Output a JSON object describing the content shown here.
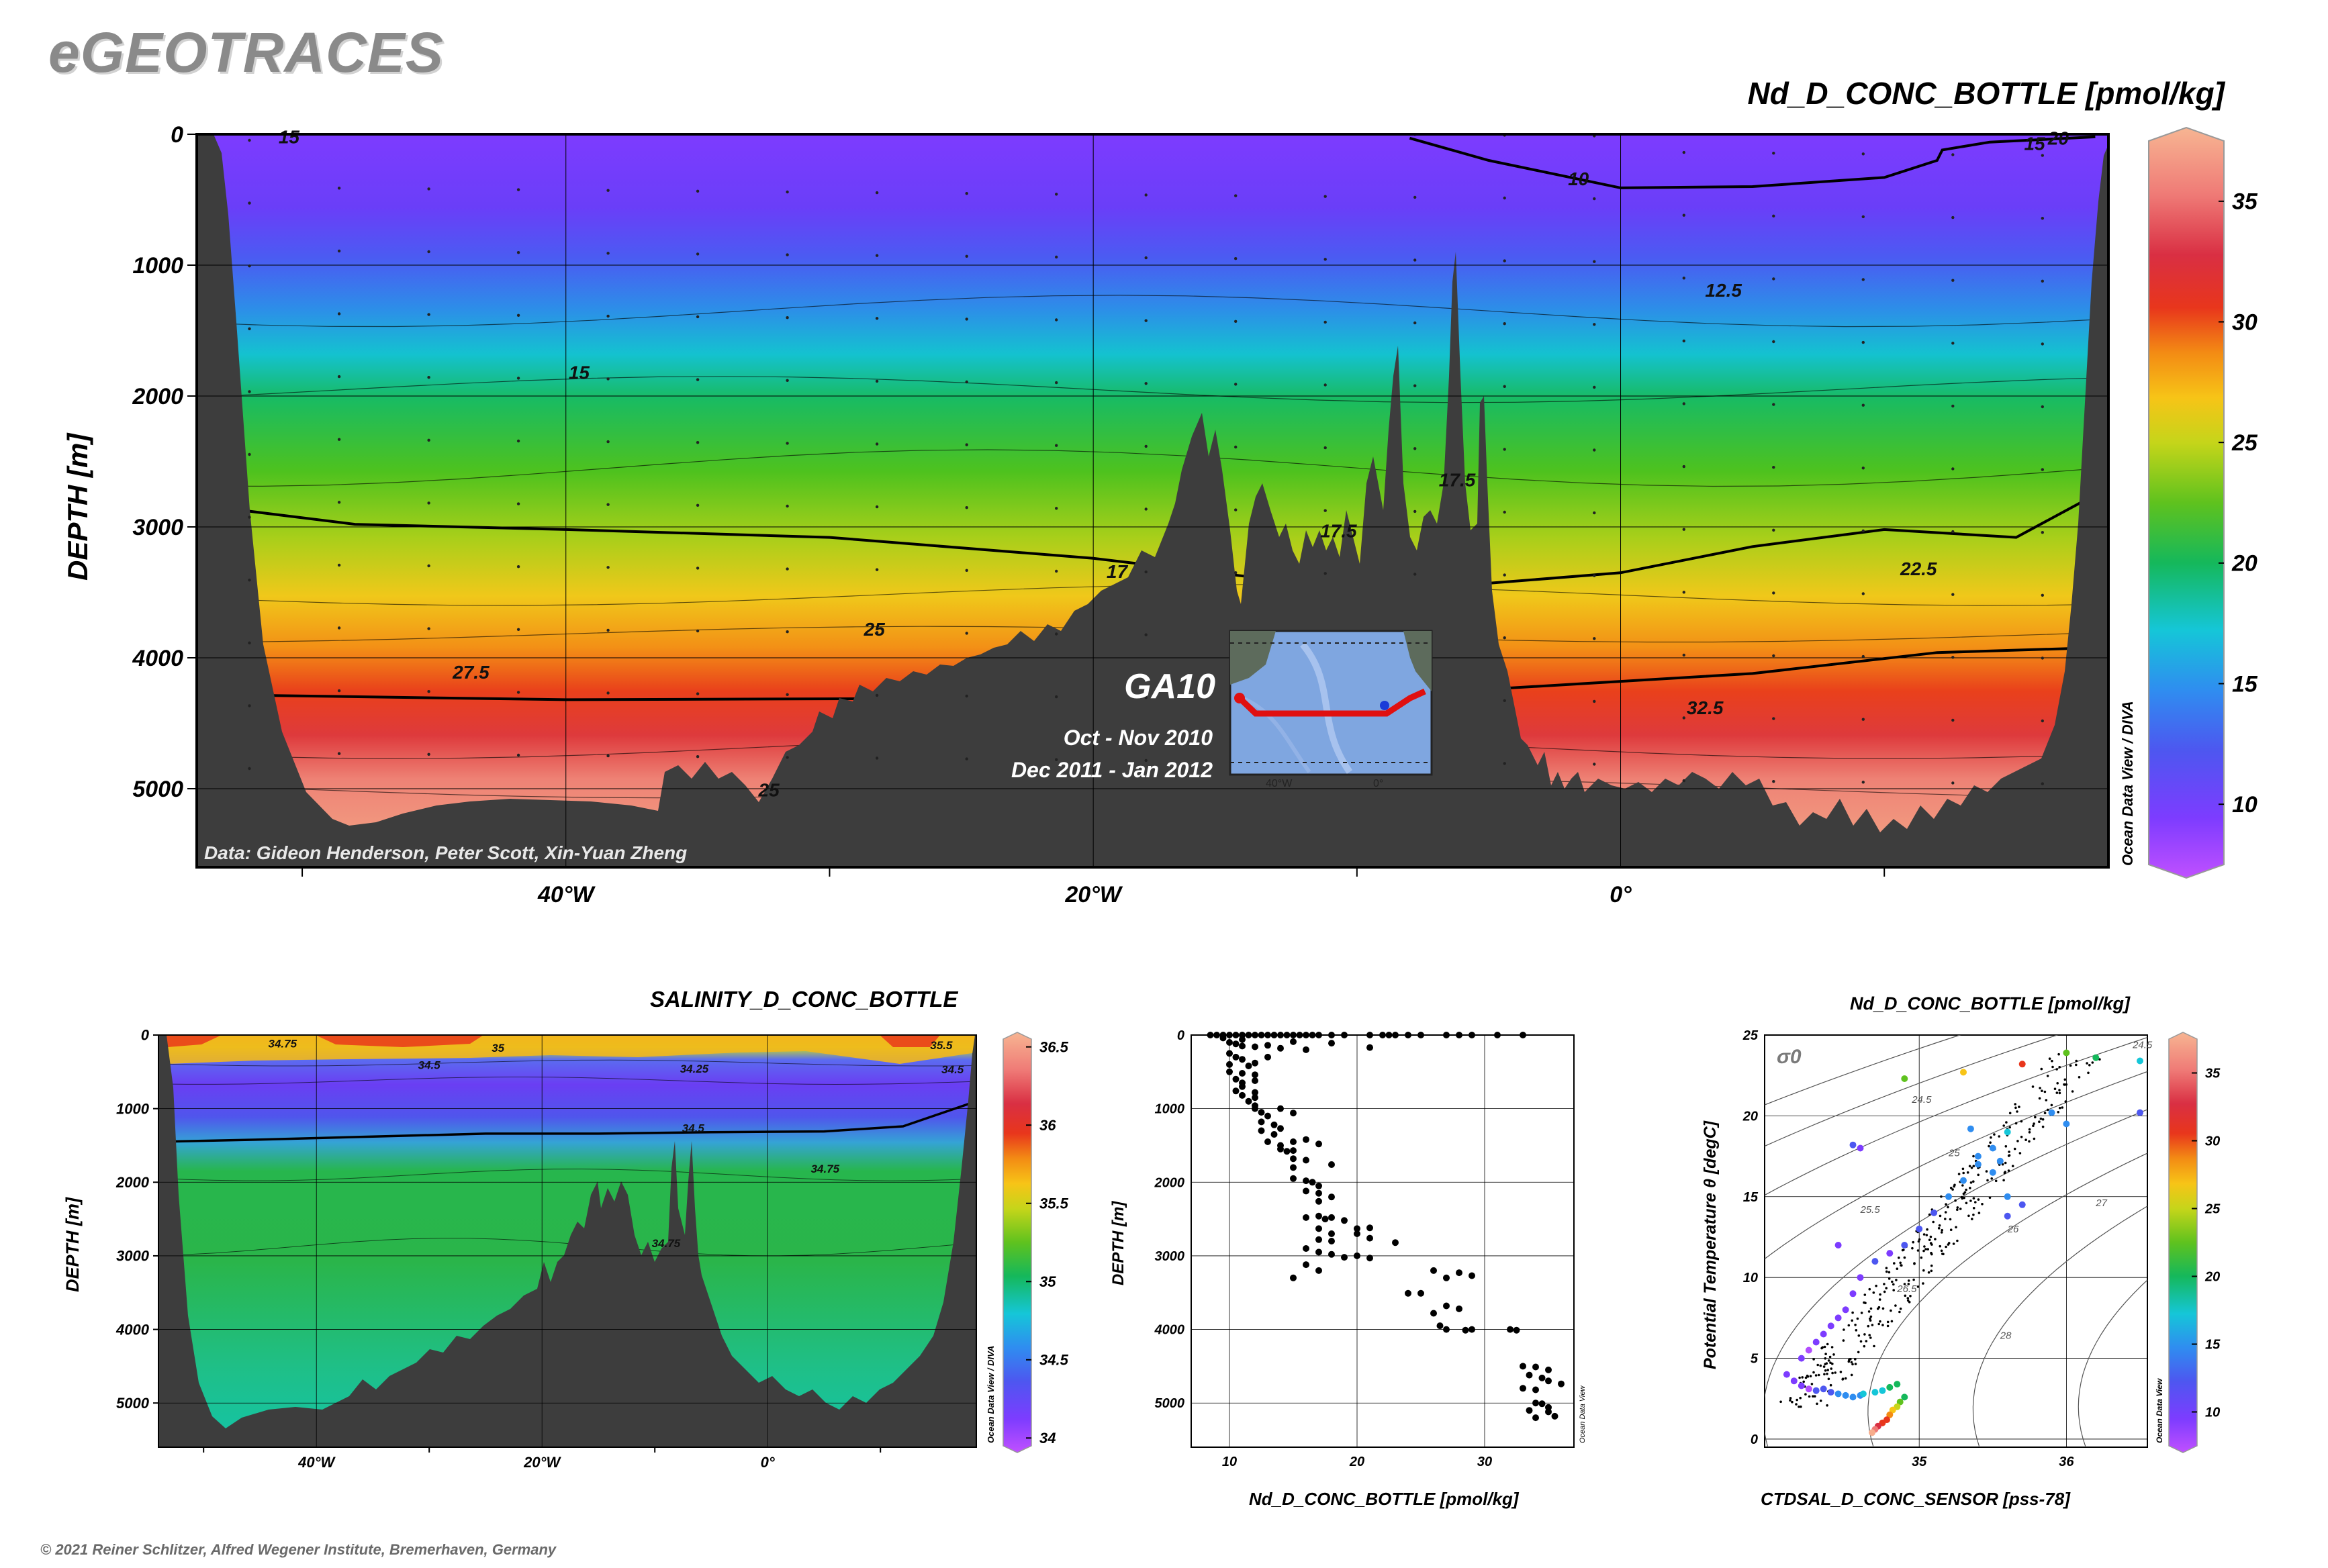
{
  "brand": "eGEOTRACES",
  "copyright": "© 2021 Reiner Schlitzer, Alfred Wegener Institute, Bremerhaven, Germany",
  "colors": {
    "land": "#3d3d3d",
    "palette": [
      "#b24dff",
      "#7d3cff",
      "#4d57f0",
      "#2f8df0",
      "#15c6d8",
      "#15b85b",
      "#5fc21e",
      "#c5d51a",
      "#f7c417",
      "#f38b14",
      "#e8361c",
      "#d92f43",
      "#ef7a76",
      "#f7ad8c"
    ]
  },
  "main": {
    "title": "Nd_D_CONC_BOTTLE [pmol/kg]",
    "ylabel": "DEPTH [m]",
    "data_credit": "Data: Gideon Henderson, Peter Scott, Xin-Yuan Zheng",
    "odv_label": "Ocean Data View / DIVA",
    "inset": {
      "cruise": "GA10",
      "period1": "Oct - Nov 2010",
      "period2": "Dec 2011 - Jan 2012",
      "lon_labels": [
        "40°W",
        "0°"
      ]
    }
  },
  "salinity": {
    "title": "SALINITY_D_CONC_BOTTLE",
    "ylabel": "DEPTH [m]",
    "odv_label": "Ocean Data View / DIVA"
  },
  "profile": {
    "xlabel": "Nd_D_CONC_BOTTLE [pmol/kg]",
    "ylabel": "DEPTH [m]",
    "odv_label": "Ocean Data View"
  },
  "ts": {
    "title": "Nd_D_CONC_BOTTLE [pmol/kg]",
    "xlabel": "CTDSAL_D_CONC_SENSOR [pss-78]",
    "ylabel": "Potential Temperature θ [degC]",
    "sigma_label": "σ0",
    "odv_label": "Ocean Data View"
  },
  "chart_data": [
    {
      "type": "heatmap",
      "name": "section",
      "variable": "Nd_D_CONC_BOTTLE [pmol/kg]",
      "x_ticks": [
        "40°W",
        "20°W",
        "0°"
      ],
      "x_tick_values": [
        -40,
        -20,
        0
      ],
      "xlim": [
        -54,
        18.5
      ],
      "y_ticks": [
        "0",
        "1000",
        "2000",
        "3000",
        "4000",
        "5000"
      ],
      "ylim": [
        0,
        5600
      ],
      "colorbar": {
        "ticks": [
          "10",
          "15",
          "20",
          "25",
          "30",
          "35"
        ],
        "range": [
          7.5,
          37.5
        ]
      },
      "contour_labels": [
        {
          "label": "15",
          "lon": -50.5,
          "depth": 70
        },
        {
          "label": "10",
          "lon": -1.6,
          "depth": 390
        },
        {
          "label": "15",
          "lon": 15.7,
          "depth": 120
        },
        {
          "label": "20",
          "lon": 16.6,
          "depth": 80
        },
        {
          "label": "12.5",
          "lon": 3.9,
          "depth": 1240
        },
        {
          "label": "15",
          "lon": -39.5,
          "depth": 1870
        },
        {
          "label": "17.5",
          "lon": -6.2,
          "depth": 2690
        },
        {
          "label": "17.5",
          "lon": -10.7,
          "depth": 3080
        },
        {
          "label": "22.5",
          "lon": 11.3,
          "depth": 3370
        },
        {
          "label": "17",
          "lon": -19.1,
          "depth": 3390
        },
        {
          "label": "25",
          "lon": -28.3,
          "depth": 3830
        },
        {
          "label": "27.5",
          "lon": -43.6,
          "depth": 4160
        },
        {
          "label": "32.5",
          "lon": 3.2,
          "depth": 4430
        },
        {
          "label": "25",
          "lon": -32.3,
          "depth": 5060
        }
      ],
      "bold_contours": [
        "10",
        "20",
        "30"
      ]
    },
    {
      "type": "heatmap",
      "name": "salinity",
      "variable": "SALINITY_D_CONC_BOTTLE",
      "x_ticks": [
        "40°W",
        "20°W",
        "0°"
      ],
      "x_tick_values": [
        -40,
        -20,
        0
      ],
      "xlim": [
        -54,
        18.5
      ],
      "y_ticks": [
        "0",
        "1000",
        "2000",
        "3000",
        "4000",
        "5000"
      ],
      "ylim": [
        0,
        5600
      ],
      "colorbar": {
        "ticks": [
          "34",
          "34.5",
          "35",
          "35.5",
          "36",
          "36.5"
        ],
        "range": [
          33.95,
          36.55
        ]
      },
      "contour_labels": [
        {
          "label": "34.75",
          "lon": -43.0,
          "depth": 170
        },
        {
          "label": "35",
          "lon": -23.9,
          "depth": 230
        },
        {
          "label": "34.5",
          "lon": -30.0,
          "depth": 460
        },
        {
          "label": "34.25",
          "lon": -6.5,
          "depth": 510
        },
        {
          "label": "34.5",
          "lon": -6.6,
          "depth": 1320
        },
        {
          "label": "34.75",
          "lon": 5.1,
          "depth": 1870
        },
        {
          "label": "34.75",
          "lon": -9.0,
          "depth": 2880
        },
        {
          "label": "35.5",
          "lon": 15.4,
          "depth": 190
        },
        {
          "label": "34.5",
          "lon": 16.4,
          "depth": 520
        }
      ]
    },
    {
      "type": "scatter",
      "name": "profile",
      "xlabel": "Nd_D_CONC_BOTTLE [pmol/kg]",
      "ylabel": "DEPTH [m]",
      "x_ticks": [
        "10",
        "20",
        "30"
      ],
      "y_ticks": [
        "0",
        "1000",
        "2000",
        "3000",
        "4000",
        "5000"
      ],
      "xlim": [
        7,
        37
      ],
      "ylim": [
        0,
        5600
      ],
      "points": [
        [
          8.5,
          0
        ],
        [
          9,
          0
        ],
        [
          9.5,
          0
        ],
        [
          10,
          0
        ],
        [
          10.5,
          0
        ],
        [
          11,
          0
        ],
        [
          11.5,
          0
        ],
        [
          12,
          0
        ],
        [
          12.5,
          0
        ],
        [
          13,
          0
        ],
        [
          13.5,
          0
        ],
        [
          14,
          0
        ],
        [
          14.5,
          0
        ],
        [
          15,
          0
        ],
        [
          15.5,
          0
        ],
        [
          16,
          0
        ],
        [
          16.5,
          0
        ],
        [
          17,
          0
        ],
        [
          18,
          0
        ],
        [
          19,
          0
        ],
        [
          21,
          0
        ],
        [
          22,
          0
        ],
        [
          22.5,
          0
        ],
        [
          23,
          0
        ],
        [
          24,
          0
        ],
        [
          25,
          0
        ],
        [
          27,
          0
        ],
        [
          28,
          0
        ],
        [
          29,
          0
        ],
        [
          31,
          0
        ],
        [
          33,
          0
        ],
        [
          10,
          100
        ],
        [
          10.5,
          120
        ],
        [
          11,
          150
        ],
        [
          12,
          160
        ],
        [
          13,
          140
        ],
        [
          14,
          180
        ],
        [
          16,
          200
        ],
        [
          18,
          110
        ],
        [
          21,
          170
        ],
        [
          11,
          60
        ],
        [
          9.5,
          40
        ],
        [
          15,
          90
        ],
        [
          10,
          250
        ],
        [
          10.5,
          300
        ],
        [
          11,
          330
        ],
        [
          10,
          400
        ],
        [
          11.5,
          420
        ],
        [
          12,
          380
        ],
        [
          13,
          300
        ],
        [
          10,
          500
        ],
        [
          11,
          520
        ],
        [
          12,
          540
        ],
        [
          10.5,
          600
        ],
        [
          11,
          650
        ],
        [
          12,
          620
        ],
        [
          11,
          700
        ],
        [
          10.5,
          760
        ],
        [
          12,
          780
        ],
        [
          11,
          820
        ],
        [
          12,
          850
        ],
        [
          11.5,
          900
        ],
        [
          12,
          960
        ],
        [
          12,
          1000
        ],
        [
          12.5,
          1050
        ],
        [
          13,
          1100
        ],
        [
          14,
          1000
        ],
        [
          15,
          1060
        ],
        [
          12.5,
          1180
        ],
        [
          13.5,
          1220
        ],
        [
          12.5,
          1300
        ],
        [
          13.5,
          1350
        ],
        [
          14,
          1270
        ],
        [
          13,
          1450
        ],
        [
          14,
          1500
        ],
        [
          15,
          1450
        ],
        [
          14,
          1550
        ],
        [
          14.5,
          1580
        ],
        [
          15,
          1570
        ],
        [
          16,
          1420
        ],
        [
          17,
          1480
        ],
        [
          15,
          1680
        ],
        [
          16,
          1700
        ],
        [
          15,
          1800
        ],
        [
          18,
          1760
        ],
        [
          15,
          1950
        ],
        [
          16,
          1980
        ],
        [
          16.5,
          2000
        ],
        [
          17,
          2050
        ],
        [
          16,
          2120
        ],
        [
          17,
          2150
        ],
        [
          18,
          2200
        ],
        [
          17,
          2260
        ],
        [
          16,
          2480
        ],
        [
          17,
          2460
        ],
        [
          17.5,
          2500
        ],
        [
          18,
          2480
        ],
        [
          19,
          2520
        ],
        [
          17,
          2630
        ],
        [
          18,
          2700
        ],
        [
          17,
          2780
        ],
        [
          20,
          2630
        ],
        [
          21,
          2620
        ],
        [
          20,
          2700
        ],
        [
          21,
          2760
        ],
        [
          18,
          2800
        ],
        [
          16,
          2900
        ],
        [
          17,
          2950
        ],
        [
          18,
          2980
        ],
        [
          19,
          3020
        ],
        [
          20,
          3000
        ],
        [
          21,
          3030
        ],
        [
          16,
          3120
        ],
        [
          17,
          3200
        ],
        [
          15,
          3300
        ],
        [
          23,
          2820
        ],
        [
          24,
          3510
        ],
        [
          25,
          3510
        ],
        [
          26,
          3200
        ],
        [
          28,
          3230
        ],
        [
          29,
          3270
        ],
        [
          27,
          3300
        ],
        [
          27,
          3680
        ],
        [
          28,
          3720
        ],
        [
          26,
          3780
        ],
        [
          26.5,
          3950
        ],
        [
          27,
          4000
        ],
        [
          28.5,
          4010
        ],
        [
          29,
          4000
        ],
        [
          32,
          4000
        ],
        [
          32.5,
          4010
        ],
        [
          33,
          4500
        ],
        [
          34,
          4510
        ],
        [
          35,
          4550
        ],
        [
          33.5,
          4620
        ],
        [
          34.5,
          4660
        ],
        [
          35,
          4700
        ],
        [
          33,
          4800
        ],
        [
          34,
          4820
        ],
        [
          36,
          4740
        ],
        [
          34,
          5000
        ],
        [
          34.5,
          5010
        ],
        [
          35,
          5060
        ],
        [
          35,
          5120
        ],
        [
          35.5,
          5180
        ],
        [
          34,
          5200
        ],
        [
          33.5,
          5100
        ]
      ]
    },
    {
      "type": "scatter",
      "name": "ts-diagram",
      "xlabel": "CTDSAL_D_CONC_SENSOR [pss-78]",
      "ylabel": "Potential Temperature θ [degC]",
      "x_ticks": [
        "35",
        "36"
      ],
      "y_ticks": [
        "0",
        "5",
        "10",
        "15",
        "20",
        "25"
      ],
      "xlim": [
        33.95,
        36.55
      ],
      "ylim": [
        -0.5,
        25
      ],
      "colorbar": {
        "ticks": [
          "10",
          "15",
          "20",
          "25",
          "30",
          "35"
        ],
        "range": [
          7.5,
          37.5
        ]
      },
      "isopycnal_labels": [
        "24",
        "24.5",
        "25",
        "25.5",
        "26",
        "26.5",
        "27",
        "28"
      ],
      "colored_points": [
        [
          34.1,
          4,
          10
        ],
        [
          34.15,
          3.6,
          11
        ],
        [
          34.2,
          3.3,
          10
        ],
        [
          34.25,
          3.1,
          9
        ],
        [
          34.3,
          3.0,
          12
        ],
        [
          34.35,
          3.1,
          13
        ],
        [
          34.4,
          2.9,
          13
        ],
        [
          34.45,
          2.8,
          14
        ],
        [
          34.5,
          2.7,
          14
        ],
        [
          34.55,
          2.6,
          15
        ],
        [
          34.6,
          2.7,
          16
        ],
        [
          34.62,
          2.8,
          17
        ],
        [
          34.7,
          2.9,
          17
        ],
        [
          34.75,
          3.0,
          18
        ],
        [
          34.8,
          3.2,
          19
        ],
        [
          34.85,
          3.4,
          19
        ],
        [
          34.9,
          2.6,
          20
        ],
        [
          34.87,
          2.3,
          22
        ],
        [
          34.85,
          2.0,
          24
        ],
        [
          34.82,
          1.8,
          25
        ],
        [
          34.8,
          1.5,
          27
        ],
        [
          34.78,
          1.2,
          29
        ],
        [
          34.75,
          1.0,
          31
        ],
        [
          34.72,
          0.8,
          33
        ],
        [
          34.7,
          0.6,
          35
        ],
        [
          34.68,
          0.4,
          36
        ],
        [
          34.2,
          5.0,
          10
        ],
        [
          34.25,
          5.5,
          9
        ],
        [
          34.3,
          6.0,
          10
        ],
        [
          34.35,
          6.5,
          11
        ],
        [
          34.4,
          7.0,
          10
        ],
        [
          34.45,
          7.5,
          10
        ],
        [
          34.5,
          8.0,
          11
        ],
        [
          34.55,
          9.0,
          10
        ],
        [
          34.6,
          10.0,
          11
        ],
        [
          34.7,
          11.0,
          12
        ],
        [
          34.8,
          11.5,
          11
        ],
        [
          34.9,
          12.0,
          12
        ],
        [
          35.0,
          13.0,
          13
        ],
        [
          35.1,
          14.0,
          13
        ],
        [
          35.2,
          15.0,
          14
        ],
        [
          35.3,
          16.0,
          15
        ],
        [
          35.4,
          17.0,
          15
        ],
        [
          35.5,
          18.0,
          16
        ],
        [
          35.6,
          19.0,
          17
        ],
        [
          34.55,
          18.2,
          12
        ],
        [
          34.6,
          18.0,
          11
        ],
        [
          34.9,
          22.3,
          22
        ],
        [
          35.3,
          22.7,
          26
        ],
        [
          35.35,
          19.2,
          14
        ],
        [
          35.4,
          17.5,
          14
        ],
        [
          35.5,
          16.5,
          16
        ],
        [
          35.6,
          15.0,
          14
        ],
        [
          35.7,
          23.2,
          31
        ],
        [
          36.0,
          23.9,
          22
        ],
        [
          36.2,
          23.6,
          20
        ],
        [
          36.5,
          23.4,
          18
        ],
        [
          36.5,
          20.2,
          12
        ],
        [
          36.0,
          19.5,
          16
        ],
        [
          35.6,
          13.8,
          13
        ],
        [
          35.7,
          14.5,
          12
        ],
        [
          35.9,
          20.2,
          14
        ],
        [
          35.55,
          17.2,
          15
        ],
        [
          34.45,
          12.0,
          10
        ]
      ]
    }
  ]
}
